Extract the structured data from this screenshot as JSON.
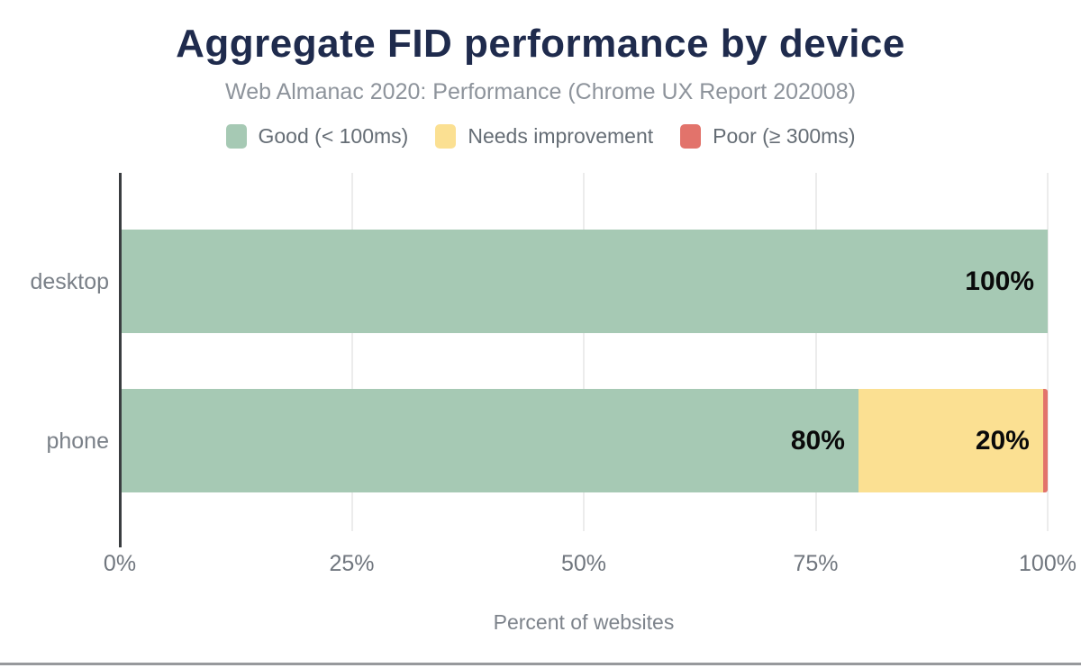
{
  "chart_data": {
    "type": "bar",
    "orientation": "horizontal",
    "stacked": true,
    "title": "Aggregate FID performance by device",
    "subtitle": "Web Almanac 2020: Performance (Chrome UX Report 202008)",
    "xlabel": "Percent of websites",
    "categories": [
      "desktop",
      "phone"
    ],
    "series": [
      {
        "name": "Good (< 100ms)",
        "color": "#a6c9b4",
        "values": [
          100,
          80
        ]
      },
      {
        "name": "Needs improvement",
        "color": "#fbe092",
        "values": [
          0,
          20
        ]
      },
      {
        "name": "Poor (≥ 300ms)",
        "color": "#e2736b",
        "values": [
          0,
          0.5
        ]
      }
    ],
    "segment_labels": [
      [
        "100%",
        "",
        ""
      ],
      [
        "80%",
        "20%",
        ""
      ]
    ],
    "xticks": [
      "0%",
      "25%",
      "50%",
      "75%",
      "100%"
    ],
    "xtick_values": [
      0,
      25,
      50,
      75,
      100
    ],
    "xlim": [
      0,
      100
    ],
    "legend_position": "top",
    "grid": "vertical"
  },
  "colors": {
    "background": "#ffffff",
    "title": "#1f2b4d",
    "subtitle": "#8d939b",
    "legend_text": "#656d75",
    "category_text": "#7a8088",
    "axis_text": "#70767e",
    "axis_title_text": "#7d838b",
    "value_label": "#0a0a0a",
    "axis_line": "#3a3d40",
    "grid": "#ececec",
    "footer_line": "#97999c"
  }
}
